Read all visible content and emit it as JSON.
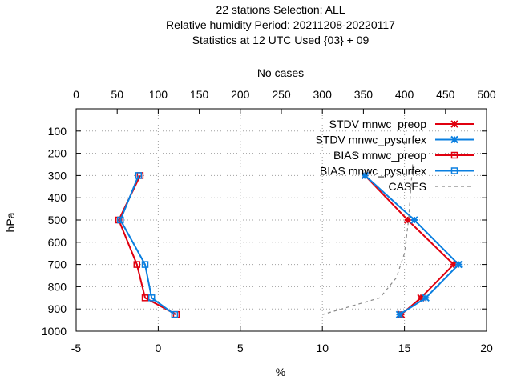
{
  "chart_data": {
    "type": "line",
    "title_lines": [
      "22 stations Selection: ALL",
      "Relative humidity  Period: 20211208-20220117",
      "Statistics at 12 UTC  Used {03} + 09"
    ],
    "xlabel": "%",
    "ylabel": "hPa",
    "x2label": "No cases",
    "xlim": [
      -5,
      20
    ],
    "x2lim": [
      0,
      500
    ],
    "ylim": [
      1000,
      0
    ],
    "x_ticks": [
      "-5",
      "0",
      "5",
      "10",
      "15",
      "20"
    ],
    "x2_ticks": [
      "0",
      "50",
      "100",
      "150",
      "200",
      "250",
      "300",
      "350",
      "400",
      "450",
      "500"
    ],
    "y_ticks": [
      "100",
      "200",
      "300",
      "400",
      "500",
      "600",
      "700",
      "800",
      "900",
      "1000"
    ],
    "grid": true,
    "legend_position": "top-right",
    "series": [
      {
        "name": "STDV mnwc_preop",
        "color": "#e0000f",
        "marker": "x",
        "points": [
          [
            12.6,
            300
          ],
          [
            15.2,
            500
          ],
          [
            18.0,
            700
          ],
          [
            16.0,
            850
          ],
          [
            14.8,
            925
          ]
        ]
      },
      {
        "name": "STDV mnwc_pysurfex",
        "color": "#0a7fe0",
        "marker": "x",
        "points": [
          [
            12.6,
            300
          ],
          [
            15.6,
            500
          ],
          [
            18.3,
            700
          ],
          [
            16.3,
            850
          ],
          [
            14.7,
            925
          ]
        ]
      },
      {
        "name": "BIAS mnwc_preop",
        "color": "#e0000f",
        "marker": "square",
        "points": [
          [
            -1.1,
            300
          ],
          [
            -2.4,
            500
          ],
          [
            -1.3,
            700
          ],
          [
            -0.8,
            850
          ],
          [
            1.1,
            925
          ]
        ]
      },
      {
        "name": "BIAS mnwc_pysurfex",
        "color": "#0a7fe0",
        "marker": "square",
        "points": [
          [
            -1.2,
            300
          ],
          [
            -2.3,
            500
          ],
          [
            -0.8,
            700
          ],
          [
            -0.4,
            850
          ],
          [
            1.0,
            925
          ]
        ]
      },
      {
        "name": "CASES",
        "color": "#888888",
        "marker": "none",
        "dashed": true,
        "axis": "x2",
        "points": [
          [
            410,
            250
          ],
          [
            405,
            500
          ],
          [
            400,
            650
          ],
          [
            390,
            760
          ],
          [
            370,
            850
          ],
          [
            300,
            925
          ]
        ]
      }
    ]
  }
}
